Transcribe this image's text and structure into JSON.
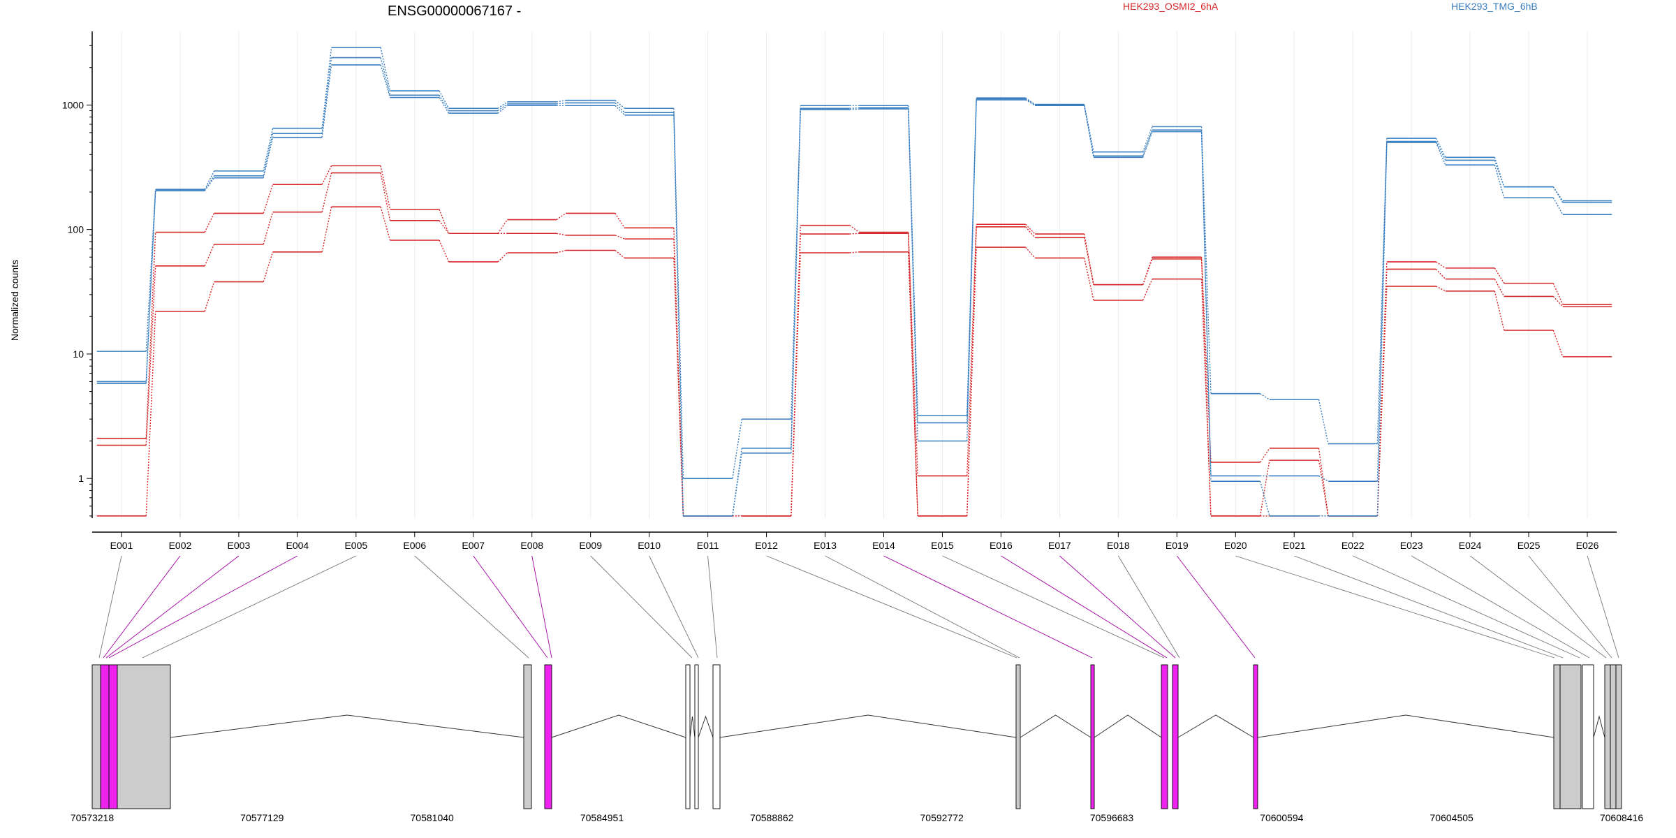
{
  "chart_data": {
    "type": "line",
    "title": "ENSG00000067167 -",
    "ylabel": "Normalized counts",
    "yscale": "log",
    "ylim": [
      0.48,
      3900
    ],
    "y_ticks": [
      1,
      10,
      100,
      1000
    ],
    "y_tick_labels": [
      "1",
      "10",
      "100",
      "1000"
    ],
    "grid": "vertical",
    "legend": {
      "placement": "top-right",
      "entries": [
        {
          "label": "HEK293_OSMI2_6hA",
          "color": "#d62728"
        },
        {
          "label": "HEK293_TMG_6hB",
          "color": "#3a7fc1"
        }
      ]
    },
    "categories": [
      "E001",
      "E002",
      "E003",
      "E004",
      "E005",
      "E006",
      "E007",
      "E008",
      "E009",
      "E010",
      "E011",
      "E012",
      "E013",
      "E014",
      "E015",
      "E016",
      "E017",
      "E018",
      "E019",
      "E020",
      "E021",
      "E022",
      "E023",
      "E024",
      "E025",
      "E026"
    ],
    "series": [
      {
        "group": "HEK293_OSMI2_6hA",
        "color": "#d62728",
        "values": [
          2.1,
          95,
          135,
          230,
          325,
          145,
          93,
          120,
          135,
          103,
          0.5,
          0.5,
          108,
          95,
          1.05,
          110,
          92,
          36,
          60,
          1.35,
          1.75,
          0.5,
          55,
          49,
          37,
          25
        ]
      },
      {
        "group": "HEK293_OSMI2_6hA",
        "color": "#d62728",
        "values": [
          1.85,
          51,
          76,
          138,
          285,
          118,
          93,
          93,
          90,
          84,
          0.5,
          0.5,
          92,
          93,
          0.5,
          105,
          86,
          36,
          58,
          0.5,
          1.4,
          0.5,
          48,
          40,
          29,
          24
        ]
      },
      {
        "group": "HEK293_OSMI2_6hA",
        "color": "#d62728",
        "values": [
          0.5,
          22,
          38,
          66,
          152,
          82,
          55,
          65,
          68,
          59,
          0.5,
          0.5,
          65,
          66,
          0.5,
          72,
          59,
          27,
          40,
          0.5,
          0.5,
          0.5,
          35,
          32,
          15.5,
          9.5
        ]
      },
      {
        "group": "HEK293_TMG_6hB",
        "color": "#3a7fc1",
        "values": [
          10.5,
          210,
          295,
          650,
          2900,
          1300,
          940,
          1060,
          1090,
          940,
          1.0,
          3.0,
          990,
          990,
          3.2,
          1140,
          1010,
          420,
          670,
          4.8,
          4.3,
          1.9,
          540,
          380,
          220,
          170
        ]
      },
      {
        "group": "HEK293_TMG_6hB",
        "color": "#3a7fc1",
        "values": [
          6.0,
          205,
          270,
          590,
          2400,
          1200,
          900,
          1020,
          1040,
          870,
          0.5,
          1.75,
          940,
          950,
          2.8,
          1120,
          1000,
          390,
          630,
          1.05,
          1.05,
          0.95,
          510,
          360,
          220,
          165
        ]
      },
      {
        "group": "HEK293_TMG_6hB",
        "color": "#3a7fc1",
        "values": [
          5.8,
          205,
          260,
          550,
          2100,
          1150,
          860,
          990,
          990,
          830,
          0.5,
          1.6,
          920,
          930,
          2.0,
          1100,
          990,
          380,
          610,
          0.95,
          0.5,
          0.5,
          500,
          330,
          180,
          132
        ]
      }
    ],
    "gene_model": {
      "coordinate_labels": [
        "70573218",
        "70577129",
        "70581040",
        "70584951",
        "70588862",
        "70592772",
        "70596683",
        "70600594",
        "70604505",
        "70608416"
      ],
      "exon_fill": "#cccccc",
      "highlight_fill": "#ee22ee"
    }
  }
}
